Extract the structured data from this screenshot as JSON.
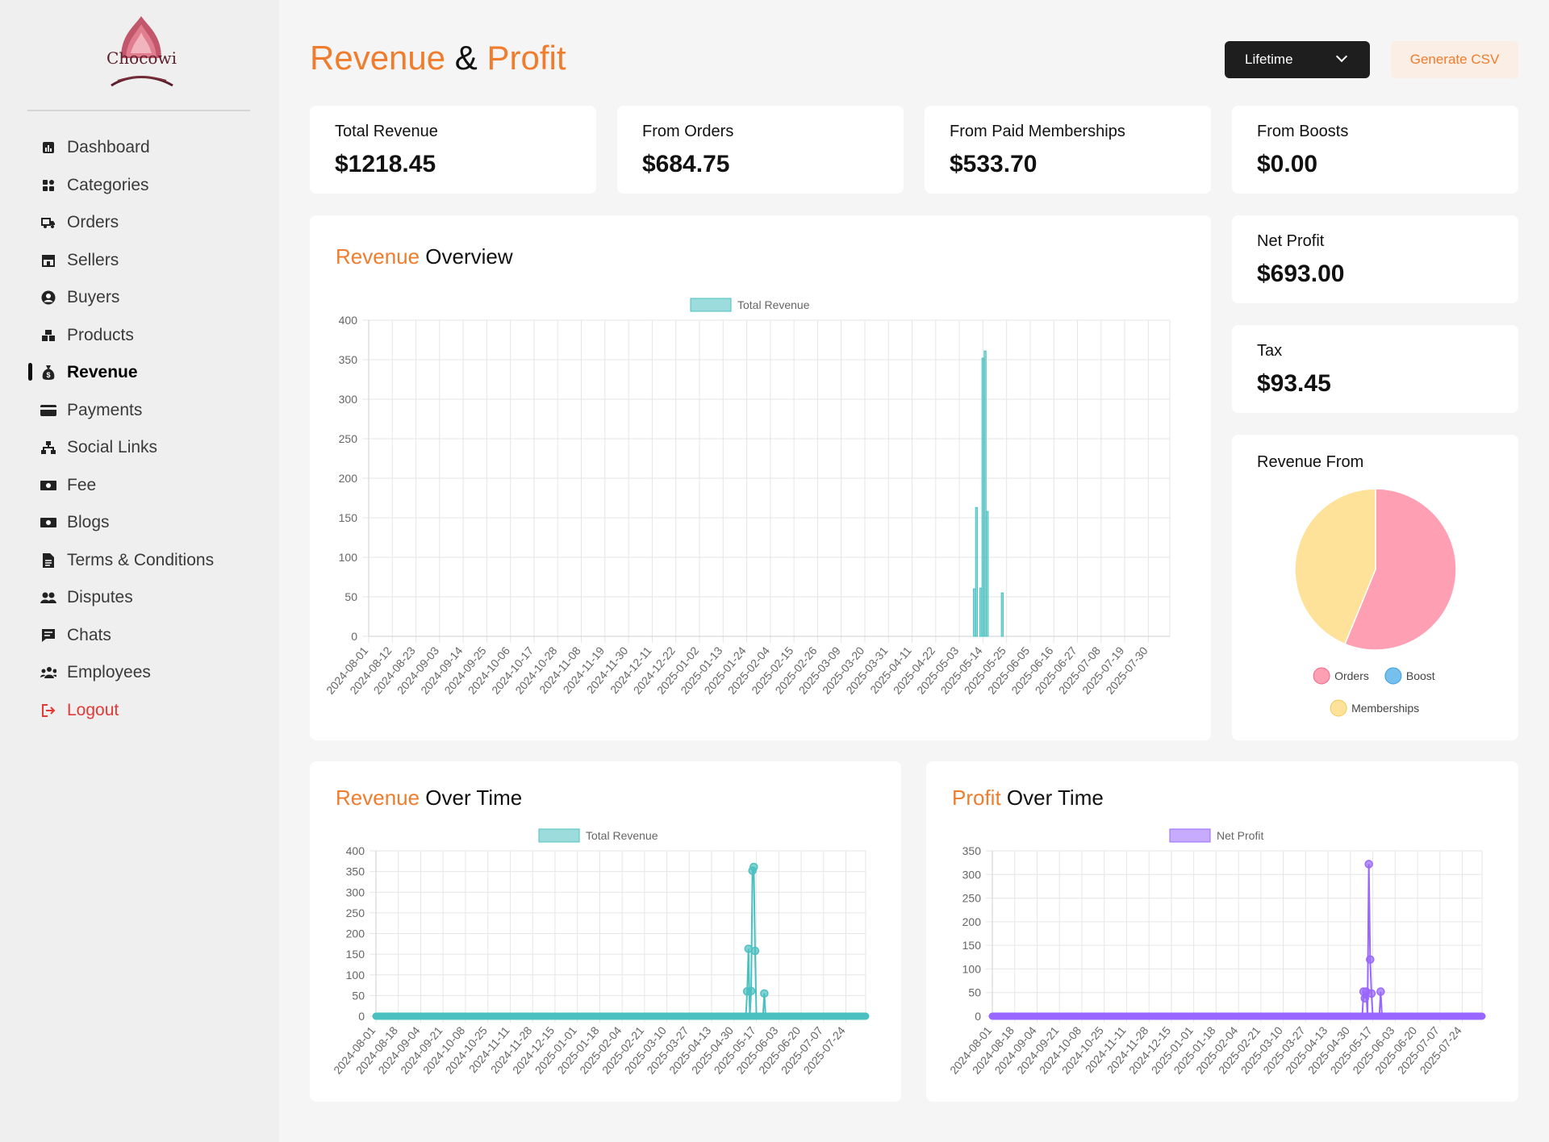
{
  "brand": {
    "name": "Chocowi"
  },
  "nav": [
    {
      "label": "Dashboard",
      "icon": "dashboard-icon"
    },
    {
      "label": "Categories",
      "icon": "grid-icon"
    },
    {
      "label": "Orders",
      "icon": "truck-icon"
    },
    {
      "label": "Sellers",
      "icon": "store-icon"
    },
    {
      "label": "Buyers",
      "icon": "user-circle-icon"
    },
    {
      "label": "Products",
      "icon": "boxes-icon"
    },
    {
      "label": "Revenue",
      "icon": "money-bag-icon",
      "active": true
    },
    {
      "label": "Payments",
      "icon": "credit-card-icon"
    },
    {
      "label": "Social Links",
      "icon": "network-icon"
    },
    {
      "label": "Fee",
      "icon": "cash-icon"
    },
    {
      "label": "Blogs",
      "icon": "cash-icon"
    },
    {
      "label": "Terms & Conditions",
      "icon": "document-icon"
    },
    {
      "label": "Disputes",
      "icon": "users-icon"
    },
    {
      "label": "Chats",
      "icon": "chat-icon"
    },
    {
      "label": "Employees",
      "icon": "team-icon"
    },
    {
      "label": "Logout",
      "icon": "logout-icon"
    }
  ],
  "header": {
    "title_part1": "Revenue",
    "title_amp": "&",
    "title_part2": "Profit",
    "period_select": "Lifetime",
    "csv_button": "Generate CSV"
  },
  "stats": [
    {
      "label": "Total Revenue",
      "value": "$1218.45"
    },
    {
      "label": "From Orders",
      "value": "$684.75"
    },
    {
      "label": "From Paid Memberships",
      "value": "$533.70"
    },
    {
      "label": "From Boosts",
      "value": "$0.00"
    }
  ],
  "side_stats": [
    {
      "label": "Net Profit",
      "value": "$693.00"
    },
    {
      "label": "Tax",
      "value": "$93.45"
    }
  ],
  "overview": {
    "title_o": "Revenue",
    "title_rest": " Overview"
  },
  "revenue_time": {
    "title_o": "Revenue",
    "title_rest": " Over Time"
  },
  "profit_time": {
    "title_o": "Profit",
    "title_rest": " Over Time"
  },
  "pie": {
    "title": "Revenue From"
  },
  "colors": {
    "accent": "#ef7d2d",
    "teal": "#4bc0c0",
    "purple": "#9966ff",
    "pink": "#ff9fb3",
    "blue": "#76c0ee",
    "yellow": "#ffe299"
  },
  "chart_data": [
    {
      "type": "bar",
      "legend": [
        "Total Revenue"
      ],
      "series": [
        {
          "name": "Total Revenue",
          "color": "#4bc0c0",
          "points": [
            {
              "x": "2025-05-10",
              "y": 60
            },
            {
              "x": "2025-05-11",
              "y": 163
            },
            {
              "x": "2025-05-13",
              "y": 61
            },
            {
              "x": "2025-05-14",
              "y": 352
            },
            {
              "x": "2025-05-15",
              "y": 361
            },
            {
              "x": "2025-05-16",
              "y": 158
            },
            {
              "x": "2025-05-23",
              "y": 55
            }
          ]
        }
      ],
      "x_ticks": [
        "2024-08-01",
        "2024-08-12",
        "2024-08-23",
        "2024-09-03",
        "2024-09-14",
        "2024-09-25",
        "2024-10-06",
        "2024-10-17",
        "2024-10-28",
        "2024-11-08",
        "2024-11-19",
        "2024-11-30",
        "2024-12-11",
        "2024-12-22",
        "2025-01-02",
        "2025-01-13",
        "2025-01-24",
        "2025-02-04",
        "2025-02-15",
        "2025-02-26",
        "2025-03-09",
        "2025-03-20",
        "2025-03-31",
        "2025-04-11",
        "2025-04-22",
        "2025-05-03",
        "2025-05-14",
        "2025-05-25",
        "2025-06-05",
        "2025-06-16",
        "2025-06-27",
        "2025-07-08",
        "2025-07-19",
        "2025-07-30"
      ],
      "y_ticks": [
        "0",
        "50",
        "100",
        "150",
        "200",
        "250",
        "300",
        "350",
        "400"
      ],
      "ylim": [
        0,
        400
      ],
      "xlim": [
        "2024-08-01",
        "2025-08-09"
      ],
      "grid": true,
      "legend_position": "top"
    },
    {
      "type": "line",
      "legend": [
        "Total Revenue"
      ],
      "series": [
        {
          "name": "Total Revenue",
          "color": "#4bc0c0",
          "points": [
            {
              "x": "2025-05-10",
              "y": 60
            },
            {
              "x": "2025-05-11",
              "y": 163
            },
            {
              "x": "2025-05-13",
              "y": 61
            },
            {
              "x": "2025-05-14",
              "y": 352
            },
            {
              "x": "2025-05-15",
              "y": 361
            },
            {
              "x": "2025-05-16",
              "y": 158
            },
            {
              "x": "2025-05-23",
              "y": 55
            }
          ]
        }
      ],
      "x_ticks": [
        "2024-08-01",
        "2024-08-18",
        "2024-09-04",
        "2024-09-21",
        "2024-10-08",
        "2024-10-25",
        "2024-11-11",
        "2024-11-28",
        "2024-12-15",
        "2025-01-01",
        "2025-01-18",
        "2025-02-04",
        "2025-02-21",
        "2025-03-10",
        "2025-03-27",
        "2025-04-13",
        "2025-04-30",
        "2025-05-17",
        "2025-06-03",
        "2025-06-20",
        "2025-07-07",
        "2025-07-24"
      ],
      "y_ticks": [
        "0",
        "50",
        "100",
        "150",
        "200",
        "250",
        "300",
        "350",
        "400"
      ],
      "ylim": [
        0,
        400
      ],
      "xlim": [
        "2024-08-01",
        "2025-08-08"
      ],
      "grid": true,
      "legend_position": "top"
    },
    {
      "type": "line",
      "legend": [
        "Net Profit"
      ],
      "series": [
        {
          "name": "Net Profit",
          "color": "#9966ff",
          "points": [
            {
              "x": "2025-05-10",
              "y": 52
            },
            {
              "x": "2025-05-11",
              "y": 38
            },
            {
              "x": "2025-05-12",
              "y": 52
            },
            {
              "x": "2025-05-14",
              "y": 322
            },
            {
              "x": "2025-05-15",
              "y": 120
            },
            {
              "x": "2025-05-16",
              "y": 48
            },
            {
              "x": "2025-05-23",
              "y": 52
            }
          ]
        }
      ],
      "x_ticks": [
        "2024-08-01",
        "2024-08-18",
        "2024-09-04",
        "2024-09-21",
        "2024-10-08",
        "2024-10-25",
        "2024-11-11",
        "2024-11-28",
        "2024-12-15",
        "2025-01-01",
        "2025-01-18",
        "2025-02-04",
        "2025-02-21",
        "2025-03-10",
        "2025-03-27",
        "2025-04-13",
        "2025-04-30",
        "2025-05-17",
        "2025-06-03",
        "2025-06-20",
        "2025-07-07",
        "2025-07-24"
      ],
      "y_ticks": [
        "0",
        "50",
        "100",
        "150",
        "200",
        "250",
        "300",
        "350"
      ],
      "ylim": [
        0,
        350
      ],
      "xlim": [
        "2024-08-01",
        "2025-08-08"
      ],
      "grid": true,
      "legend_position": "top"
    },
    {
      "type": "pie",
      "categories": [
        "Orders",
        "Boost",
        "Memberships"
      ],
      "values": [
        684.75,
        0,
        533.7
      ],
      "colors": [
        "#ff9fb3",
        "#76c0ee",
        "#ffe299"
      ],
      "legend_position": "bottom"
    }
  ]
}
